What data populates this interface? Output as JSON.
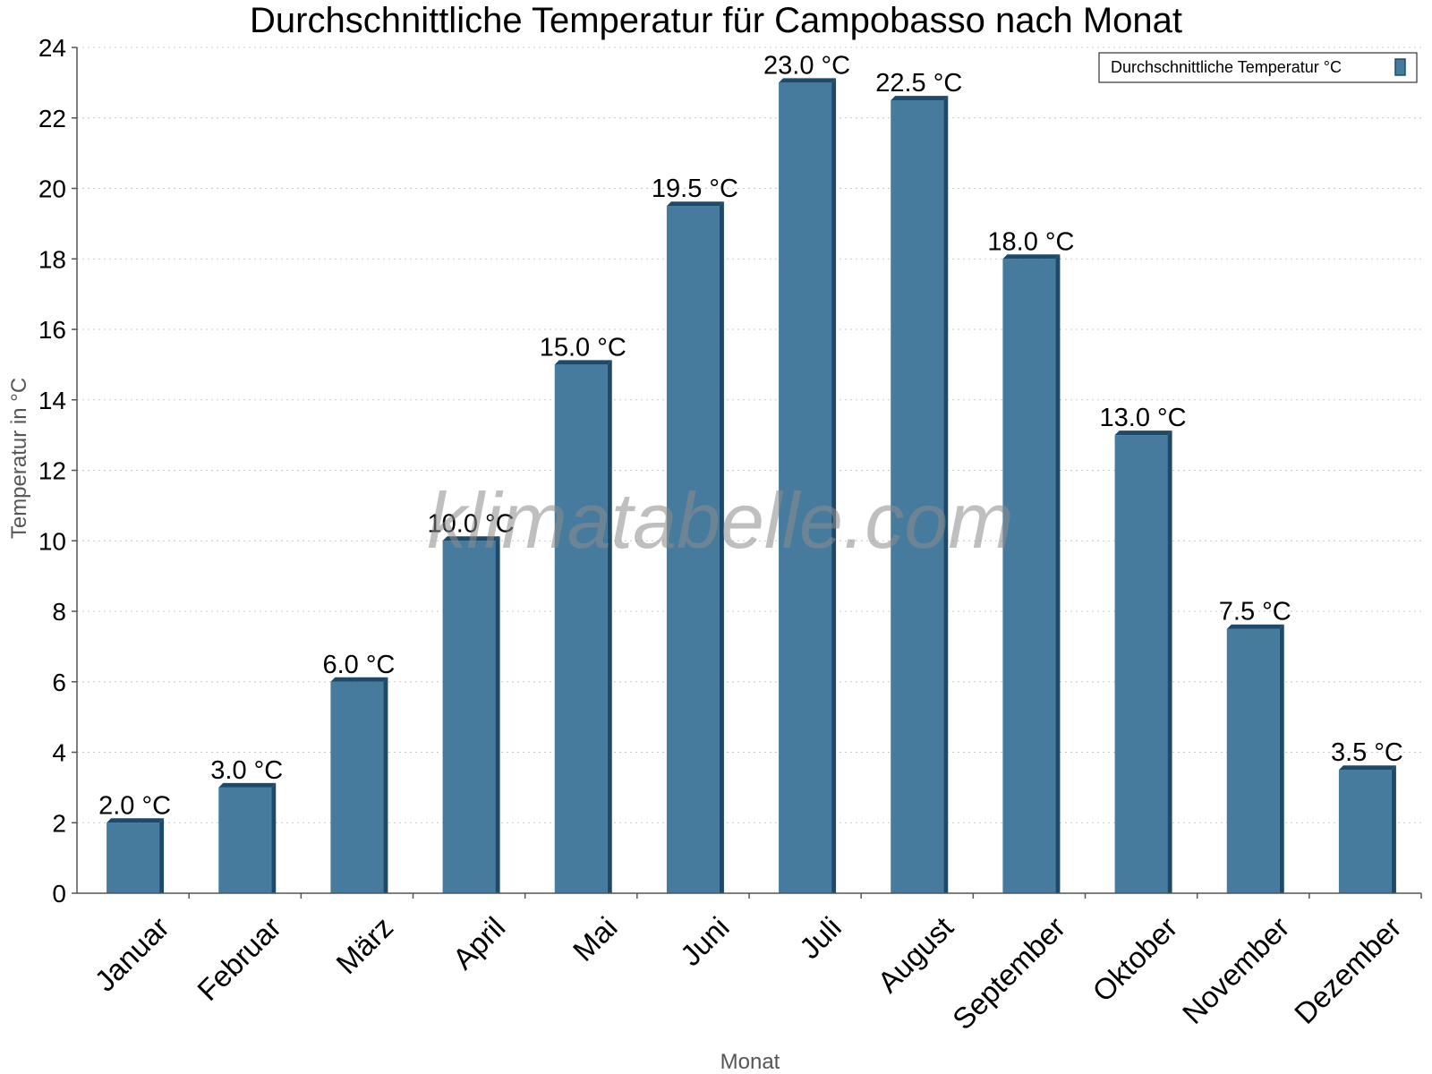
{
  "chart_data": {
    "type": "bar",
    "title": "Durchschnittliche Temperatur für Campobasso nach Monat",
    "xlabel": "Monat",
    "ylabel": "Temperatur in °C",
    "categories": [
      "Januar",
      "Februar",
      "März",
      "April",
      "Mai",
      "Juni",
      "Juli",
      "August",
      "September",
      "Oktober",
      "November",
      "Dezember"
    ],
    "series": [
      {
        "name": "Durchschnittliche Temperatur °C",
        "values": [
          2.0,
          3.0,
          6.0,
          10.0,
          15.0,
          19.5,
          23.0,
          22.5,
          18.0,
          13.0,
          7.5,
          3.5
        ],
        "data_labels": [
          "2.0 °C",
          "3.0 °C",
          "6.0 °C",
          "10.0 °C",
          "15.0 °C",
          "19.5 °C",
          "23.0 °C",
          "22.5 °C",
          "18.0 °C",
          "13.0 °C",
          "7.5 °C",
          "3.5 °C"
        ],
        "color": "#467b9e",
        "edge_color": "#1d4a6b"
      }
    ],
    "ylim": [
      0,
      24
    ],
    "yticks": [
      0,
      2,
      4,
      6,
      8,
      10,
      12,
      14,
      16,
      18,
      20,
      22,
      24
    ],
    "grid": true,
    "legend_position": "top-right",
    "watermark": "klimatabelle.com"
  }
}
